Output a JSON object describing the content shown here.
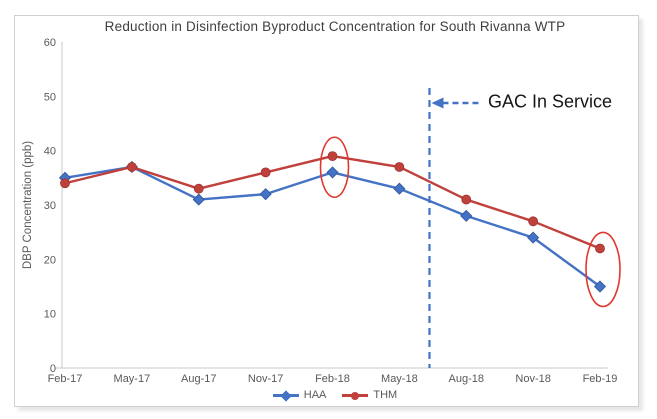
{
  "chart_data": {
    "type": "line",
    "title": "Reduction in Disinfection Byproduct Concentration for South Rivanna WTP",
    "xlabel": "",
    "ylabel": "DBP Concentration (ppb)",
    "ylim": [
      0,
      60
    ],
    "yticks": [
      0,
      10,
      20,
      30,
      40,
      50,
      60
    ],
    "grid": false,
    "legend_position": "bottom",
    "categories": [
      "Feb-17",
      "May-17",
      "Aug-17",
      "Nov-17",
      "Feb-18",
      "May-18",
      "Aug-18",
      "Nov-18",
      "Feb-19"
    ],
    "series": [
      {
        "name": "HAA",
        "marker": "diamond",
        "color": "#4472C4",
        "values": [
          35,
          37,
          31,
          32,
          36,
          33,
          28,
          24,
          15
        ]
      },
      {
        "name": "THM",
        "marker": "circle",
        "color": "#C0403C",
        "values": [
          34,
          37,
          33,
          36,
          39,
          37,
          31,
          27,
          22
        ]
      }
    ],
    "annotations": {
      "vline": {
        "position_between": [
          "May-18",
          "Aug-18"
        ],
        "style": "dashed",
        "color": "#4472C4"
      },
      "label": {
        "text": "GAC In Service",
        "color": "#161616"
      },
      "ellipses": [
        {
          "category": "Feb-18",
          "note": "circled data points"
        },
        {
          "category": "Feb-19",
          "note": "circled data points"
        }
      ],
      "ellipse_color": "#E0382F"
    }
  }
}
